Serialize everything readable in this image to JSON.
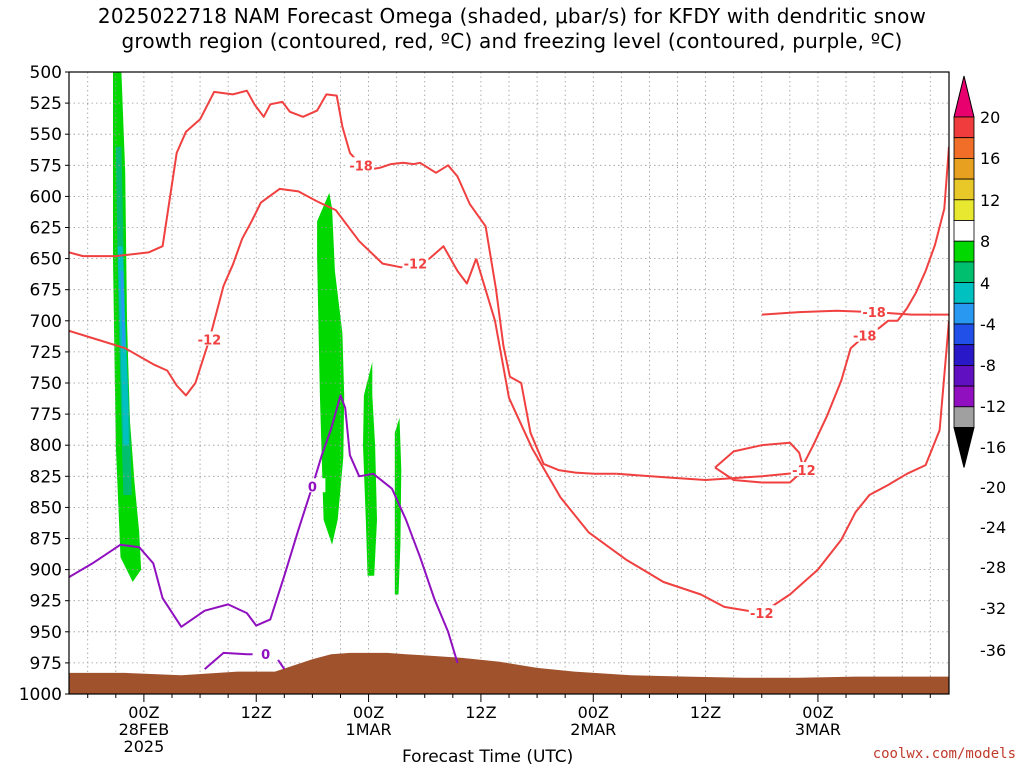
{
  "title": {
    "line1": "2025022718 NAM Forecast Omega (shaded, μbar/s) for KFDY with dendritic snow",
    "line2": "growth region (contoured, red, ºC) and freezing level (contoured, purple, ºC)"
  },
  "credit": "coolwx.com/models",
  "chart_data": {
    "type": "heatmap",
    "title": "2025022718 NAM Forecast Omega (shaded, μbar/s) for KFDY with dendritic snow growth region (contoured, red, ºC) and freezing level (contoured, purple, ºC)",
    "xlabel": "Forecast Time (UTC)",
    "ylabel": "",
    "x_range_hours": [
      -8,
      86
    ],
    "y_range_mb": [
      500,
      1000
    ],
    "y_ticks": [
      "500",
      "525",
      "550",
      "575",
      "600",
      "625",
      "650",
      "675",
      "700",
      "725",
      "750",
      "775",
      "800",
      "825",
      "850",
      "875",
      "900",
      "925",
      "950",
      "975",
      "1000"
    ],
    "x_ticks": [
      {
        "hour": 0,
        "label": "00Z",
        "sub1": "28FEB",
        "sub2": "2025"
      },
      {
        "hour": 12,
        "label": "12Z",
        "sub1": "",
        "sub2": ""
      },
      {
        "hour": 24,
        "label": "00Z",
        "sub1": "1MAR",
        "sub2": ""
      },
      {
        "hour": 36,
        "label": "12Z",
        "sub1": "",
        "sub2": ""
      },
      {
        "hour": 48,
        "label": "00Z",
        "sub1": "2MAR",
        "sub2": ""
      },
      {
        "hour": 60,
        "label": "12Z",
        "sub1": "",
        "sub2": ""
      },
      {
        "hour": 72,
        "label": "00Z",
        "sub1": "3MAR",
        "sub2": ""
      }
    ],
    "grid": "dotted vertical every 3h, horizontal at each pressure tick",
    "colorbar": {
      "labels": [
        "20",
        "16",
        "12",
        "8",
        "4",
        "-4",
        "-8",
        "-12",
        "-16",
        "-20",
        "-24",
        "-28",
        "-32",
        "-36"
      ],
      "colors": [
        "#e8006e",
        "#f03c3c",
        "#f06e28",
        "#e8a020",
        "#e8c828",
        "#e8e830",
        "#ffffff",
        "#00d800",
        "#00c070",
        "#00c0c0",
        "#2898f0",
        "#2050e8",
        "#2818c8",
        "#6010c0",
        "#9010c0",
        "#a0a0a0",
        "#000000"
      ]
    },
    "omega_areas": [
      {
        "level": "-4 to -8",
        "color": "#00d800",
        "t": [
          -3.3,
          -2.4,
          -2.0,
          -1.8,
          -1.5,
          -1.0,
          -0.5,
          -0.3,
          -1.2,
          -2.5,
          -3.0,
          -3.3
        ],
        "p": [
          500,
          500,
          580,
          700,
          780,
          830,
          870,
          900,
          910,
          890,
          800,
          650
        ]
      },
      {
        "level": "-8 to -12",
        "color": "#00c070",
        "t": [
          -3.0,
          -2.4,
          -2.0,
          -1.5,
          -1.3,
          -2.2,
          -2.7
        ],
        "p": [
          560,
          560,
          700,
          780,
          840,
          840,
          700
        ]
      },
      {
        "level": "-12 to -16",
        "color": "#00c0c0",
        "t": [
          -2.8,
          -2.3,
          -1.7,
          -1.6,
          -2.2,
          -2.5
        ],
        "p": [
          640,
          640,
          760,
          800,
          800,
          720
        ]
      },
      {
        "level": "-16 to -20",
        "color": "#2898f0",
        "t": [
          -2.5,
          -2.2,
          -2.0,
          -2.3
        ],
        "p": [
          660,
          660,
          720,
          720
        ]
      },
      {
        "level": "-4 to -8",
        "color": "#00d800",
        "t": [
          18.5,
          19.8,
          20.1,
          20.4,
          21.2,
          21.4,
          21.3,
          20.7,
          20.1,
          19.2,
          18.8,
          18.5
        ],
        "p": [
          620,
          597,
          610,
          660,
          710,
          760,
          810,
          860,
          880,
          860,
          760,
          650
        ]
      },
      {
        "level": "-4 to -8",
        "color": "#00d800",
        "t": [
          23.5,
          24.4,
          24.4,
          24.7,
          24.9,
          24.6,
          23.9,
          23.7,
          23.4
        ],
        "p": [
          760,
          733,
          760,
          800,
          860,
          905,
          905,
          860,
          800
        ]
      },
      {
        "level": "-4 to -8",
        "color": "#00d800",
        "t": [
          26.8,
          27.3,
          27.5,
          27.4,
          27.2,
          26.8,
          26.8
        ],
        "p": [
          790,
          778,
          820,
          880,
          920,
          920,
          860
        ]
      }
    ],
    "contours": [
      {
        "label": "-18",
        "color": "#f04040",
        "t": [
          -8,
          -6.5,
          -3,
          0.5,
          2,
          3.5,
          4.5,
          6,
          7.5,
          9.5,
          11,
          11.8,
          12.8,
          13.5,
          14.8,
          15.6,
          17,
          18.5,
          19.5,
          20.6,
          21.2,
          22,
          23.2,
          24.4,
          25.2,
          26.4,
          27.7,
          28.8,
          29.5,
          31.2,
          32.5,
          33.5,
          34.8,
          36.5,
          37.6,
          38.4,
          39.1,
          40.3,
          41.3,
          42.7,
          44.3,
          46.1,
          48.1,
          50.5
        ],
        "p": [
          645,
          648,
          648,
          645,
          640,
          565,
          548,
          538,
          516,
          518,
          515,
          526,
          536,
          526,
          524,
          532,
          536,
          531,
          518,
          519,
          544,
          565,
          575,
          578,
          577,
          574,
          573,
          574,
          573,
          581,
          575,
          584,
          606,
          624,
          674,
          720,
          745,
          750,
          790,
          815,
          820,
          822,
          823,
          823
        ]
      },
      {
        "label": "-18",
        "color": "#f04040",
        "t": [
          50.5,
          56,
          60,
          66,
          70,
          71.5,
          73,
          74.5,
          75.5,
          77,
          78.5,
          79.5,
          80.5,
          81.5,
          82.5,
          83.5,
          84.5,
          85.5,
          86
        ],
        "p": [
          823,
          826,
          828,
          825,
          822,
          800,
          776,
          748,
          722,
          712,
          706,
          700,
          700,
          690,
          677,
          660,
          639,
          610,
          560
        ]
      },
      {
        "label": "-18",
        "color": "#f04040",
        "t": [
          66,
          70,
          74,
          78,
          82,
          86
        ],
        "p": [
          695,
          693,
          692,
          693,
          695,
          695
        ]
      },
      {
        "label": "-12",
        "color": "#f04040",
        "t": [
          -8,
          -5,
          -2,
          1,
          2.5,
          3.5,
          4.5,
          5.5,
          7,
          8.5,
          9.5,
          10.5,
          11.5,
          12.5,
          14.5,
          16.5,
          18.5
        ],
        "p": [
          708,
          715,
          722,
          735,
          740,
          752,
          760,
          750,
          715,
          672,
          655,
          634,
          620,
          605,
          594,
          596,
          604
        ]
      },
      {
        "label": "-12",
        "color": "#f04040",
        "t": [
          18.5,
          20.5,
          23,
          25.5,
          27.5,
          29,
          30.5,
          32,
          33.5,
          34.5,
          35.5
        ],
        "p": [
          604,
          611,
          636,
          654,
          657,
          654,
          650,
          640,
          660,
          670,
          650
        ]
      },
      {
        "label": "-12",
        "color": "#f04040",
        "t": [
          35.5,
          37.5,
          39,
          41.5,
          44.5,
          47.5,
          51.5,
          55.5,
          59.5,
          62,
          66,
          69,
          72,
          74.5,
          76,
          77.5,
          79.5,
          81.5,
          83.5,
          85,
          86
        ],
        "p": [
          650,
          700,
          762,
          803,
          842,
          870,
          892,
          910,
          920,
          930,
          935,
          920,
          900,
          876,
          854,
          840,
          832,
          823,
          816,
          788,
          700
        ]
      },
      {
        "label": "-12",
        "color": "#f04040",
        "t": [
          61,
          63,
          66,
          69,
          70,
          70.5,
          69,
          66,
          63,
          61
        ],
        "p": [
          818,
          805,
          800,
          798,
          806,
          820,
          830,
          830,
          828,
          818
        ]
      },
      {
        "label": "0",
        "color": "#9010c0",
        "t": [
          -8,
          -5.5,
          -2.5,
          -0.5,
          1,
          2,
          4,
          6.5,
          9,
          11,
          12,
          13.5,
          15,
          16.5,
          18,
          19,
          20,
          21,
          21.5,
          22,
          23,
          24.5,
          26.5,
          28,
          29.5,
          31,
          32.5,
          33.5
        ],
        "p": [
          906,
          895,
          880,
          882,
          895,
          923,
          946,
          933,
          928,
          935,
          945,
          940,
          905,
          868,
          833,
          808,
          787,
          760,
          770,
          808,
          825,
          823,
          835,
          860,
          890,
          923,
          950,
          975
        ]
      },
      {
        "label": "0",
        "color": "#9010c0",
        "t": [
          6.5,
          8.5,
          11,
          13,
          14,
          15
        ],
        "p": [
          980,
          967,
          968,
          968,
          969,
          980
        ]
      }
    ],
    "terrain": {
      "color": "#a0522d",
      "t": [
        -8,
        -2,
        4,
        10,
        14,
        18,
        20,
        22,
        24,
        26,
        28,
        30,
        34,
        38,
        42,
        46,
        52,
        58,
        64,
        70,
        76,
        80,
        86
      ],
      "p": [
        983,
        983,
        985,
        982,
        982,
        972,
        968,
        967,
        967,
        967,
        968,
        969,
        971,
        974,
        979,
        982,
        985,
        986,
        987,
        987,
        986,
        986,
        986
      ]
    }
  }
}
